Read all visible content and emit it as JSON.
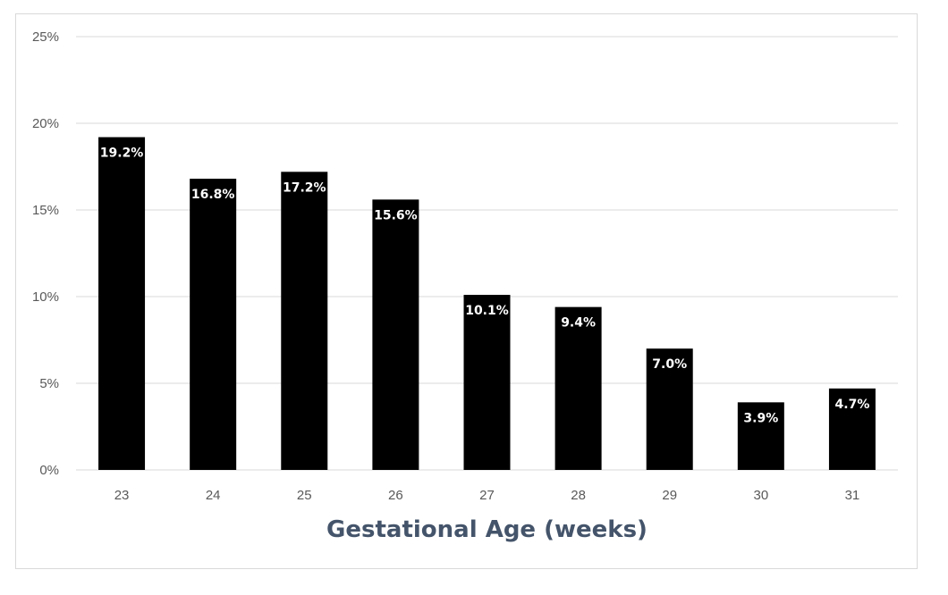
{
  "chart_data": {
    "type": "bar",
    "categories": [
      "23",
      "24",
      "25",
      "26",
      "27",
      "28",
      "29",
      "30",
      "31"
    ],
    "values": [
      19.2,
      16.8,
      17.2,
      15.6,
      10.1,
      9.4,
      7.0,
      3.9,
      4.7
    ],
    "data_labels": [
      "19.2%",
      "16.8%",
      "17.2%",
      "15.6%",
      "10.1%",
      "9.4%",
      "7.0%",
      "3.9%",
      "4.7%"
    ],
    "title": "",
    "xlabel": "Gestational Age (weeks)",
    "ylabel": "",
    "ylim": [
      0,
      25
    ],
    "y_ticks": [
      0,
      5,
      10,
      15,
      20,
      25
    ],
    "y_tick_labels": [
      "0%",
      "5%",
      "10%",
      "15%",
      "20%",
      "25%"
    ],
    "grid": true,
    "legend": "none",
    "colors": {
      "bar": "#000000",
      "grid": "#d9d9d9",
      "axis_title": "#44546a",
      "tick_label": "#595959",
      "data_label": "#ffffff"
    }
  }
}
